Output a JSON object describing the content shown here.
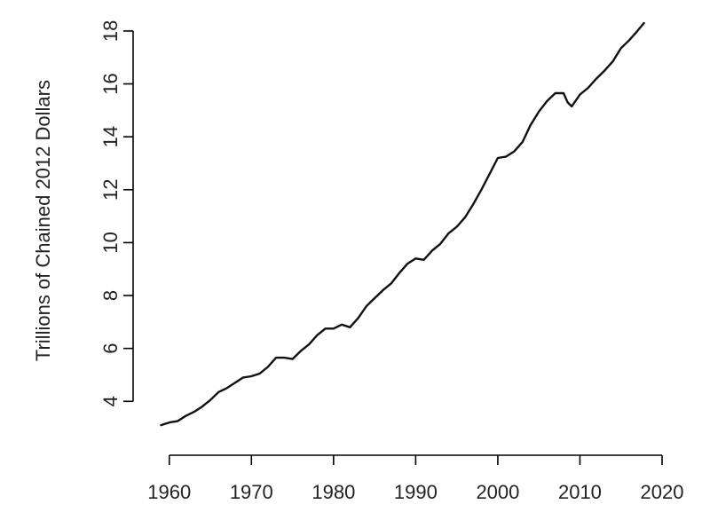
{
  "chart_data": {
    "type": "line",
    "title": "",
    "xlabel": "",
    "ylabel": "Trillions of Chained 2012 Dollars",
    "xlim": [
      1957,
      2020
    ],
    "ylim": [
      2.5,
      18.5
    ],
    "x_ticks": [
      1960,
      1970,
      1980,
      1990,
      2000,
      2010,
      2020
    ],
    "y_ticks": [
      4,
      6,
      8,
      10,
      12,
      14,
      16,
      18
    ],
    "grid": false,
    "legend": "none",
    "line_color": "#111111",
    "series": [
      {
        "x": [
          1959.0,
          1960.0,
          1961.0,
          1962.0,
          1963.0,
          1964.0,
          1965.0,
          1966.0,
          1967.0,
          1968.0,
          1969.0,
          1970.0,
          1971.0,
          1972.0,
          1973.0,
          1974.0,
          1975.0,
          1976.0,
          1977.0,
          1978.0,
          1979.0,
          1980.0,
          1981.0,
          1982.0,
          1983.0,
          1984.0,
          1985.0,
          1986.0,
          1987.0,
          1988.0,
          1989.0,
          1990.0,
          1991.0,
          1992.0,
          1993.0,
          1994.0,
          1995.0,
          1996.0,
          1997.0,
          1998.0,
          1999.0,
          2000.0,
          2001.0,
          2002.0,
          2003.0,
          2004.0,
          2005.0,
          2006.0,
          2007.0,
          2008.0,
          2008.5,
          2009.0,
          2010.0,
          2011.0,
          2012.0,
          2013.0,
          2014.0,
          2015.0,
          2016.0,
          2017.0,
          2017.8
        ],
        "values": [
          3.1,
          3.2,
          3.25,
          3.45,
          3.6,
          3.8,
          4.05,
          4.35,
          4.5,
          4.7,
          4.9,
          4.95,
          5.05,
          5.3,
          5.65,
          5.65,
          5.6,
          5.9,
          6.15,
          6.5,
          6.75,
          6.75,
          6.9,
          6.8,
          7.15,
          7.6,
          7.9,
          8.2,
          8.45,
          8.85,
          9.2,
          9.4,
          9.35,
          9.7,
          9.95,
          10.35,
          10.6,
          10.95,
          11.45,
          12.0,
          12.6,
          13.2,
          13.25,
          13.45,
          13.8,
          14.45,
          14.95,
          15.35,
          15.65,
          15.65,
          15.3,
          15.15,
          15.6,
          15.85,
          16.2,
          16.5,
          16.85,
          17.35,
          17.65,
          18.0,
          18.3
        ]
      }
    ]
  }
}
